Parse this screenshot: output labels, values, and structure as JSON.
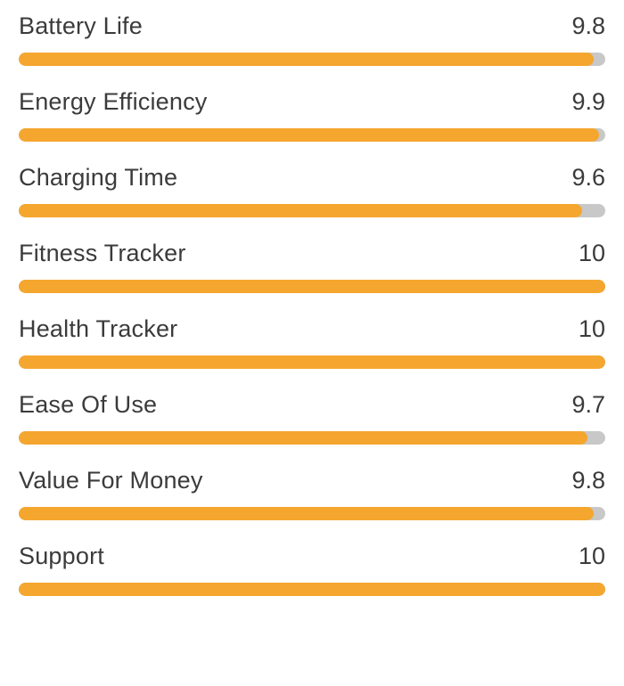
{
  "colors": {
    "bar_fill": "#F5A62E",
    "bar_track": "#C8C8C8",
    "text": "#3b3b3b"
  },
  "chart_data": {
    "type": "bar",
    "orientation": "horizontal",
    "title": "",
    "xlabel": "",
    "ylabel": "",
    "max_value": 10,
    "grid": false,
    "legend": false,
    "categories": [
      "Battery Life",
      "Energy Efficiency",
      "Charging Time",
      "Fitness Tracker",
      "Health Tracker",
      "Ease Of Use",
      "Value For Money",
      "Support"
    ],
    "values": [
      9.8,
      9.9,
      9.6,
      10,
      10,
      9.7,
      9.8,
      10
    ],
    "value_labels": [
      "9.8",
      "9.9",
      "9.6",
      "10",
      "10",
      "9.7",
      "9.8",
      "10"
    ]
  }
}
